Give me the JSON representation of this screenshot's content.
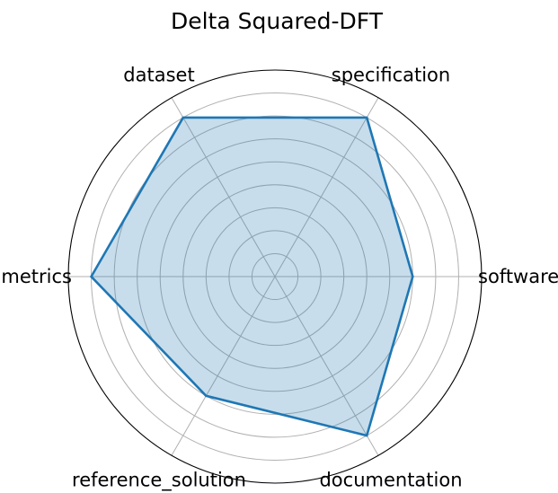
{
  "chart_data": {
    "type": "radar",
    "title": "Delta Squared-DFT",
    "axes": [
      "software",
      "specification",
      "dataset",
      "metrics",
      "reference_solution",
      "documentation"
    ],
    "series": [
      {
        "values": [
          3,
          4,
          4,
          4,
          3,
          4
        ]
      }
    ],
    "rlim": [
      0,
      4.5
    ],
    "rgrid": [
      0.5,
      1.0,
      1.5,
      2.0,
      2.5,
      3.0,
      3.5,
      4.0,
      4.5
    ],
    "grid": true,
    "colors": {
      "line": "#1f77b4",
      "fill": "#1f77b4",
      "grid": "#b0b0b0",
      "frame": "#000000"
    }
  }
}
